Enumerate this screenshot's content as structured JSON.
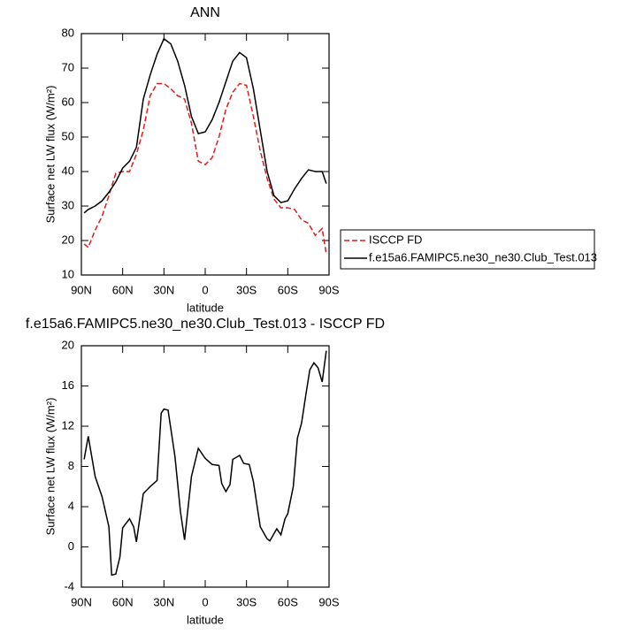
{
  "chart_data": [
    {
      "type": "line",
      "title": "ANN",
      "xlabel": "latitude",
      "ylabel": "Surface net LW flux (W/m²)",
      "x": [
        88,
        85,
        80,
        75,
        70,
        65,
        60,
        55,
        50,
        45,
        40,
        35,
        30,
        25,
        20,
        15,
        10,
        5,
        0,
        -5,
        -10,
        -15,
        -20,
        -25,
        -30,
        -35,
        -40,
        -45,
        -50,
        -55,
        -60,
        -65,
        -70,
        -75,
        -80,
        -85,
        -88
      ],
      "series": [
        {
          "name": "ISCCP FD",
          "color": "#e41a1c",
          "linestyle": "dashed",
          "values": [
            19,
            18,
            23,
            27,
            33,
            39.5,
            40,
            40,
            45,
            52,
            62,
            65.5,
            65.5,
            64,
            62,
            61,
            54,
            43,
            42,
            44,
            50,
            58,
            63,
            65.5,
            65,
            56,
            46,
            38,
            32,
            29.5,
            29.5,
            29,
            26,
            25,
            21.5,
            23.5,
            16
          ]
        },
        {
          "name": "f.e15a6.FAMIPC5.ne30_ne30.Club_Test.013",
          "color": "#000000",
          "linestyle": "solid",
          "values": [
            28,
            29,
            30,
            31.5,
            34,
            37,
            41,
            43,
            47,
            61,
            68,
            74,
            78.5,
            77,
            72,
            65,
            56,
            51,
            51.5,
            55,
            60,
            66,
            72,
            74.5,
            73,
            64,
            52,
            40,
            33,
            31,
            31.5,
            35,
            38,
            40.5,
            40,
            40,
            36.5
          ]
        }
      ],
      "xlim": [
        90,
        -90
      ],
      "xticks": [
        {
          "value": 90,
          "label": "90N"
        },
        {
          "value": 60,
          "label": "60N"
        },
        {
          "value": 30,
          "label": "30N"
        },
        0,
        {
          "value": -30,
          "label": "30S"
        },
        {
          "value": -60,
          "label": "60S"
        },
        {
          "value": -90,
          "label": "90S"
        }
      ],
      "ylim": [
        10,
        80
      ],
      "yticks": [
        10,
        20,
        30,
        40,
        50,
        60,
        70,
        80
      ],
      "legend": "right"
    },
    {
      "type": "line",
      "title": "f.e15a6.FAMIPC5.ne30_ne30.Club_Test.013 - ISCCP FD",
      "xlabel": "latitude",
      "ylabel": "Surface net LW flux (W/m²)",
      "x": [
        88,
        85,
        80,
        75,
        70,
        68,
        65,
        62,
        60,
        55,
        52,
        50,
        45,
        40,
        35,
        32,
        30,
        27,
        22,
        18,
        15,
        10,
        5,
        0,
        -5,
        -10,
        -12,
        -15,
        -18,
        -20,
        -25,
        -28,
        -32,
        -35,
        -40,
        -45,
        -47,
        -52,
        -55,
        -58,
        -60,
        -64,
        -67,
        -70,
        -73,
        -76,
        -79,
        -82,
        -85,
        -88
      ],
      "series": [
        {
          "color": "#000000",
          "linestyle": "solid",
          "values": [
            8.7,
            11,
            7,
            5,
            2,
            -2.8,
            -2.7,
            -1,
            1.9,
            2.8,
            2,
            0.5,
            5.3,
            6,
            6.6,
            13.3,
            13.7,
            13.6,
            9,
            3.5,
            0.7,
            7,
            9.8,
            8.8,
            8.2,
            8.1,
            6.3,
            5.5,
            6.2,
            8.7,
            9.1,
            8.3,
            8.2,
            6.5,
            2,
            0.8,
            0.6,
            1.8,
            1.2,
            2.8,
            3.3,
            6,
            10.8,
            12.3,
            15,
            17.6,
            18.3,
            17.8,
            16.4,
            19.5
          ]
        }
      ],
      "xlim": [
        90,
        -90
      ],
      "xticks": [
        {
          "value": 90,
          "label": "90N"
        },
        {
          "value": 60,
          "label": "60N"
        },
        {
          "value": 30,
          "label": "30N"
        },
        0,
        {
          "value": -30,
          "label": "30S"
        },
        {
          "value": -60,
          "label": "60S"
        },
        {
          "value": -90,
          "label": "90S"
        }
      ],
      "ylim": [
        -4,
        20
      ],
      "yticks": [
        -4,
        0,
        4,
        8,
        12,
        16,
        20
      ]
    }
  ]
}
